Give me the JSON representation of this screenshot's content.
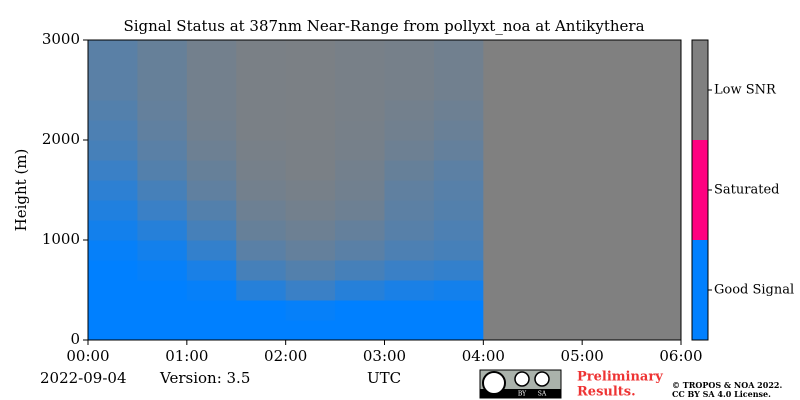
{
  "chart_data": {
    "type": "heatmap",
    "title": "Signal Status at 387nm Near-Range from pollyxt_noa at Antikythera",
    "ylabel": "Height (m)",
    "xlabel": "UTC",
    "date": "2022-09-04",
    "version": "Version: 3.5",
    "note": [
      "Preliminary",
      "Results."
    ],
    "credit": [
      "© TROPOS & NOA 2022.",
      "CC BY SA 4.0 License."
    ],
    "badge": [
      "BY",
      "SA"
    ],
    "xlim": [
      0,
      6
    ],
    "xticks": [
      {
        "value": 0,
        "label": "00:00"
      },
      {
        "value": 1,
        "label": "01:00"
      },
      {
        "value": 2,
        "label": "02:00"
      },
      {
        "value": 3,
        "label": "03:00"
      },
      {
        "value": 4,
        "label": "04:00"
      },
      {
        "value": 5,
        "label": "05:00"
      },
      {
        "value": 6,
        "label": "06:00"
      }
    ],
    "ylim": [
      0,
      3000
    ],
    "yticks": [
      0,
      1000,
      2000,
      3000
    ],
    "x_bins": [
      0,
      0.5,
      1,
      1.5,
      2,
      2.5,
      3,
      3.5,
      4,
      4.5,
      5,
      5.5,
      6
    ],
    "y_bins": [
      0,
      200,
      400,
      600,
      800,
      1000,
      1200,
      1400,
      1600,
      1800,
      2000,
      2200,
      2400,
      2600,
      2800,
      3000
    ],
    "value_meaning": "Good Signal",
    "values": [
      [
        100,
        100,
        100,
        100,
        95,
        85,
        75,
        65,
        55,
        45,
        40,
        35,
        30,
        30,
        30
      ],
      [
        100,
        100,
        100,
        95,
        85,
        70,
        55,
        45,
        35,
        30,
        25,
        22,
        20,
        20,
        20
      ],
      [
        100,
        100,
        95,
        80,
        60,
        45,
        35,
        25,
        20,
        15,
        12,
        10,
        10,
        10,
        10
      ],
      [
        100,
        100,
        70,
        45,
        30,
        20,
        15,
        10,
        8,
        6,
        5,
        5,
        5,
        5,
        5
      ],
      [
        100,
        95,
        55,
        35,
        22,
        15,
        10,
        7,
        5,
        5,
        4,
        4,
        4,
        4,
        4
      ],
      [
        100,
        100,
        70,
        45,
        30,
        22,
        15,
        12,
        10,
        8,
        7,
        6,
        6,
        6,
        6
      ],
      [
        100,
        100,
        80,
        55,
        40,
        32,
        28,
        25,
        20,
        15,
        12,
        10,
        8,
        8,
        8
      ],
      [
        100,
        100,
        85,
        60,
        45,
        40,
        35,
        32,
        28,
        22,
        18,
        15,
        12,
        12,
        12
      ],
      [
        0,
        0,
        0,
        0,
        0,
        0,
        0,
        0,
        0,
        0,
        0,
        0,
        0,
        0,
        0
      ],
      [
        0,
        0,
        0,
        0,
        0,
        0,
        0,
        0,
        0,
        0,
        0,
        0,
        0,
        0,
        0
      ],
      [
        0,
        0,
        0,
        0,
        0,
        0,
        0,
        0,
        0,
        0,
        0,
        0,
        0,
        0,
        0
      ],
      [
        0,
        0,
        0,
        0,
        0,
        0,
        0,
        0,
        0,
        0,
        0,
        0,
        0,
        0,
        0
      ]
    ],
    "colorbar": {
      "categories": [
        "Good Signal",
        "Saturated",
        "Low SNR"
      ],
      "colors": [
        "#0080ff",
        "#ff0080",
        "#808080"
      ]
    }
  }
}
